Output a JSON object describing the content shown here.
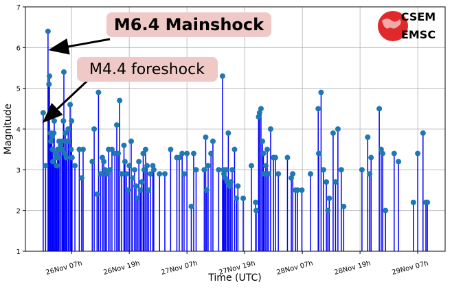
{
  "chart_data": {
    "type": "stem",
    "xlabel": "Time (UTC)",
    "ylabel": "Magnitude",
    "color": "#0000ff",
    "marker_color": "#1f77b4",
    "grid": true,
    "xlim": [
      -2.6,
      84.7
    ],
    "ylim": [
      1,
      7
    ],
    "yticks": [
      1,
      2,
      3,
      4,
      5,
      6,
      7
    ],
    "xticks": [
      {
        "value": 7,
        "label": "26Nov 07h"
      },
      {
        "value": 19,
        "label": "26Nov 19h"
      },
      {
        "value": 31,
        "label": "27Nov 07h"
      },
      {
        "value": 43,
        "label": "27Nov 19h"
      },
      {
        "value": 55,
        "label": "28Nov 07h"
      },
      {
        "value": 67,
        "label": "28Nov 19h"
      },
      {
        "value": 79,
        "label": "29Nov 07h"
      }
    ],
    "x": [
      1.1,
      1.6,
      2.1,
      2.3,
      2.4,
      2.6,
      2.7,
      2.9,
      3.0,
      3.1,
      3.3,
      3.4,
      3.6,
      3.7,
      3.9,
      4.1,
      4.3,
      4.4,
      4.7,
      5.0,
      5.1,
      5.3,
      5.4,
      5.6,
      5.7,
      5.9,
      6.0,
      6.3,
      6.4,
      6.7,
      6.9,
      7.0,
      7.1,
      7.7,
      8.6,
      9.1,
      9.4,
      11.3,
      11.7,
      12.3,
      12.6,
      13.0,
      13.4,
      13.7,
      14.0,
      14.3,
      14.7,
      15.0,
      15.4,
      16.0,
      16.4,
      16.7,
      17.0,
      17.4,
      17.9,
      18.1,
      18.4,
      18.7,
      19.0,
      19.4,
      19.7,
      20.1,
      20.4,
      20.7,
      21.0,
      21.3,
      21.6,
      21.9,
      22.1,
      22.4,
      22.7,
      23.0,
      23.4,
      23.9,
      24.1,
      25.3,
      26.4,
      27.6,
      28.9,
      29.4,
      30.0,
      30.4,
      31.0,
      31.9,
      32.4,
      32.9,
      34.6,
      34.9,
      35.1,
      35.4,
      36.0,
      36.4,
      37.6,
      38.4,
      38.6,
      38.7,
      38.9,
      39.1,
      39.4,
      39.6,
      39.9,
      40.1,
      40.4,
      40.9,
      41.3,
      41.6,
      42.7,
      44.4,
      45.3,
      45.4,
      45.9,
      46.1,
      46.4,
      46.7,
      46.9,
      47.1,
      47.4,
      47.7,
      48.0,
      48.4,
      49.0,
      49.4,
      50.0,
      51.9,
      52.7,
      53.0,
      53.6,
      54.0,
      54.9,
      56.7,
      58.3,
      58.4,
      58.9,
      59.4,
      60.0,
      60.3,
      60.6,
      61.4,
      61.9,
      62.4,
      63.1,
      63.6,
      67.4,
      68.6,
      69.0,
      69.3,
      71.0,
      71.4,
      71.7,
      72.3,
      74.1,
      75.0,
      78.1,
      79.0,
      80.1,
      80.7,
      81.0
    ],
    "values": [
      4.4,
      3.1,
      6.4,
      5.1,
      5.3,
      3.9,
      3.7,
      3.8,
      3.5,
      3.2,
      3.9,
      4.2,
      3.4,
      3.3,
      3.1,
      3.5,
      3.3,
      3.7,
      3.6,
      3.7,
      3.5,
      4.2,
      5.4,
      3.4,
      3.9,
      3.3,
      3.7,
      4.0,
      3.7,
      4.6,
      3.5,
      4.2,
      3.3,
      3.1,
      3.5,
      2.8,
      3.5,
      3.2,
      4.0,
      2.4,
      4.9,
      2.9,
      3.3,
      3.2,
      3.0,
      2.9,
      3.5,
      3.0,
      3.5,
      3.4,
      4.1,
      3.4,
      4.7,
      2.9,
      3.6,
      3.2,
      2.9,
      2.5,
      3.1,
      3.7,
      2.8,
      3.0,
      2.6,
      2.3,
      3.2,
      2.5,
      2.7,
      3.4,
      3.0,
      3.5,
      3.1,
      2.5,
      2.9,
      3.1,
      3.0,
      2.9,
      2.9,
      3.5,
      3.3,
      3.3,
      3.4,
      2.9,
      3.4,
      2.1,
      3.4,
      3.0,
      3.0,
      3.8,
      2.5,
      3.1,
      3.4,
      3.7,
      3.0,
      5.3,
      3.0,
      2.9,
      2.8,
      3.0,
      2.7,
      3.9,
      2.6,
      2.7,
      3.0,
      3.5,
      2.3,
      2.6,
      2.3,
      3.1,
      2.2,
      2.0,
      4.3,
      4.4,
      4.5,
      3.7,
      3.4,
      2.9,
      3.1,
      3.5,
      2.9,
      4.0,
      3.3,
      3.3,
      2.9,
      3.3,
      2.8,
      2.9,
      2.5,
      2.5,
      2.5,
      2.9,
      4.5,
      3.4,
      4.9,
      3.0,
      2.7,
      2.0,
      2.3,
      3.9,
      2.7,
      4.0,
      3.0,
      2.1,
      3.0,
      3.8,
      2.9,
      3.3,
      4.5,
      3.5,
      3.4,
      2.0,
      3.4,
      3.2,
      2.2,
      3.4,
      3.9,
      2.2,
      2.2
    ],
    "annotations": [
      "M6.4 Mainshock",
      "M4.4 foreshock"
    ],
    "logo": [
      "CSEM",
      "EMSC"
    ]
  }
}
